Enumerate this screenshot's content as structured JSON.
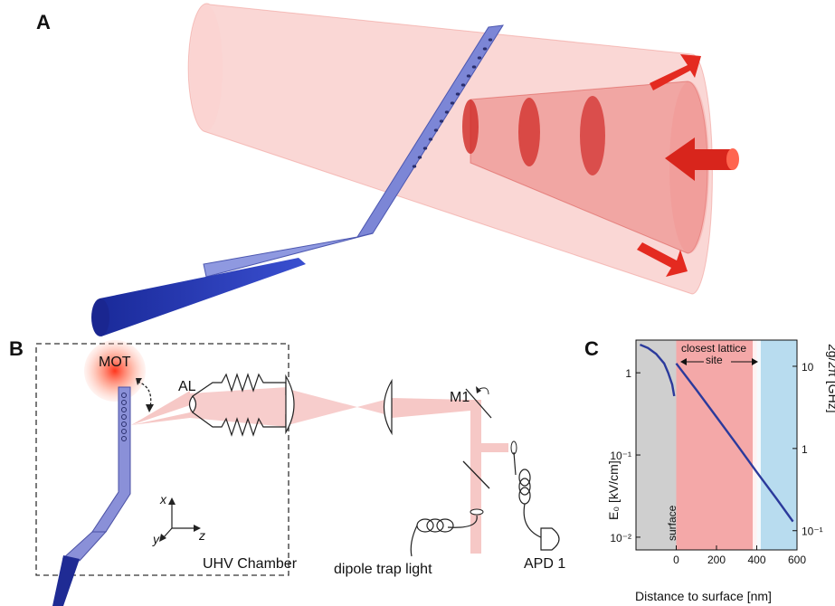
{
  "panels": {
    "a": {
      "letter": "A"
    },
    "b": {
      "letter": "B",
      "labels": {
        "mot": "MOT",
        "al": "AL",
        "m1": "M1",
        "x": "x",
        "y": "y",
        "z": "z",
        "chamber": "UHV Chamber",
        "dipole": "dipole trap light",
        "apd": "APD 1"
      }
    },
    "c": {
      "letter": "C"
    }
  },
  "chart_data": {
    "type": "line",
    "xlabel": "Distance to surface [nm]",
    "ylabel_left": "E₀ [kV/cm]",
    "ylabel_right": "2g/2π [GHz]",
    "x_ticks": [
      "0",
      "200",
      "400",
      "600"
    ],
    "y_left_ticks": [
      "1",
      "10⁻¹",
      "10⁻²"
    ],
    "y_right_ticks": [
      "10",
      "1",
      "10⁻¹"
    ],
    "annotations": {
      "surface": "surface",
      "lattice": "closest lattice site"
    },
    "xlim": [
      -200,
      600
    ],
    "ylim_left": [
      0.007,
      2.5
    ],
    "log_y": true,
    "regions": [
      {
        "name": "substrate",
        "x": [
          -200,
          0
        ],
        "color": "#cfcfcf"
      },
      {
        "name": "lattice",
        "x": [
          0,
          400
        ],
        "color": "#f4a8a8"
      },
      {
        "name": "far",
        "x": [
          400,
          600
        ],
        "color": "#b8dcef"
      }
    ],
    "series": [
      {
        "x": [
          -180,
          -140,
          -100,
          -60,
          -40,
          -20,
          -10
        ],
        "y": [
          2.2,
          2.0,
          1.7,
          1.3,
          1.0,
          0.72,
          0.52
        ]
      },
      {
        "x": [
          0,
          100,
          200,
          300,
          400,
          500,
          580
        ],
        "y": [
          1.3,
          0.62,
          0.29,
          0.135,
          0.062,
          0.029,
          0.0155
        ]
      }
    ],
    "line_color": "#2b3a9c"
  }
}
